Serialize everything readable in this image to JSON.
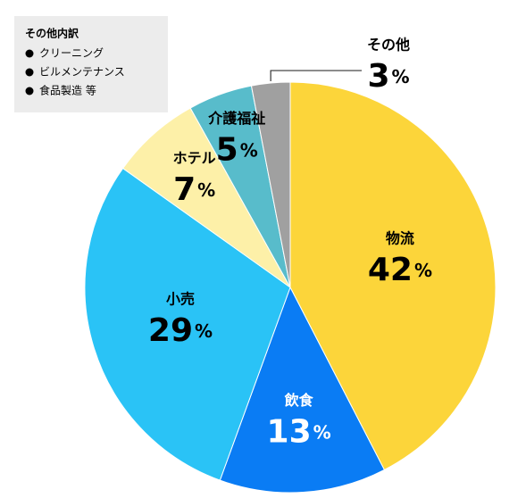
{
  "chart_data": {
    "type": "pie",
    "unit": "%",
    "categories": [
      "物流",
      "飲食",
      "小売",
      "ホテル",
      "介護福祉",
      "その他"
    ],
    "values": [
      42,
      13,
      29,
      7,
      5,
      3
    ],
    "colors": [
      "#fcd53a",
      "#0a7cf4",
      "#2ac3f6",
      "#fdf0a8",
      "#58bccb",
      "#a0a0a0"
    ],
    "legend": {
      "title": "その他内訳",
      "items": [
        "クリーニング",
        "ビルメンテナンス",
        "食品製造 等"
      ]
    }
  }
}
